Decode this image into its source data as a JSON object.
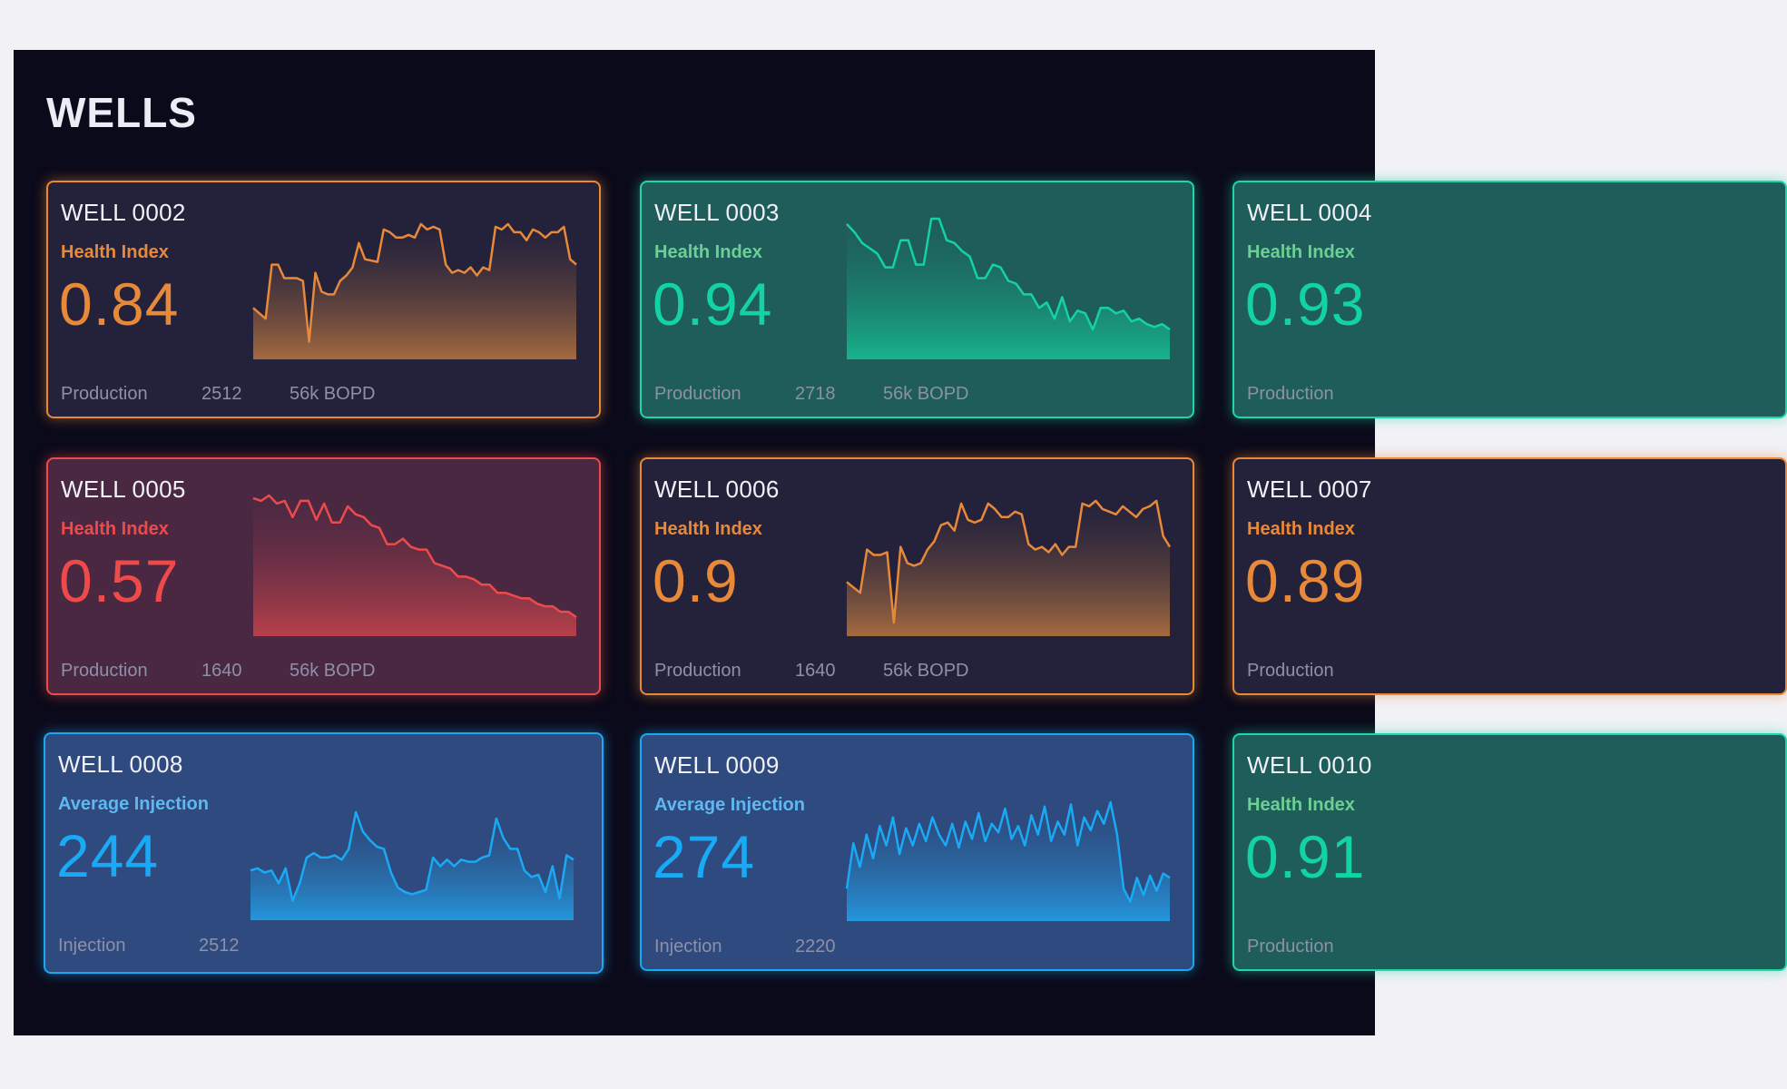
{
  "header": {
    "title": "WELLS"
  },
  "themes": {
    "orange": {
      "bg": "#24223a",
      "border": "#e8893a",
      "accent": "#e8893a",
      "metric": "#e8893a",
      "fill_bottom": "#a56a3e",
      "fill_top": "#2a2540"
    },
    "teal": {
      "bg": "#1e5d5a",
      "border": "#1fd6a8",
      "accent": "#14d3a2",
      "metric": "#6ccf94",
      "fill_bottom": "#17b38c",
      "fill_top": "#1e5d5a"
    },
    "red": {
      "bg": "#4a2842",
      "border": "#ec4b4b",
      "accent": "#ef4a4a",
      "metric": "#ef4a4a",
      "fill_bottom": "#b8404a",
      "fill_top": "#512a44"
    },
    "blue": {
      "bg": "#2e4a7e",
      "border": "#1aa8f2",
      "accent": "#1aaaf5",
      "metric": "#5fb8f0",
      "fill_bottom": "#2396dc",
      "fill_top": "#2e4a7e"
    }
  },
  "wells": [
    {
      "name": "WELL 0002",
      "theme": "orange",
      "metric": "Health Index",
      "value": "0.84",
      "footer_label": "Production",
      "footer_value": "2512",
      "footer_unit": "56k BOPD",
      "sparkline": [
        30,
        26,
        22,
        62,
        62,
        52,
        52,
        52,
        50,
        5,
        56,
        42,
        40,
        40,
        50,
        54,
        60,
        78,
        66,
        65,
        64,
        88,
        86,
        82,
        82,
        84,
        82,
        92,
        88,
        90,
        88,
        62,
        56,
        58,
        56,
        60,
        54,
        60,
        58,
        90,
        88,
        92,
        86,
        86,
        80,
        88,
        86,
        82,
        86,
        86,
        90,
        66,
        62
      ]
    },
    {
      "name": "WELL 0003",
      "theme": "teal",
      "metric": "Health Index",
      "value": "0.94",
      "footer_label": "Production",
      "footer_value": "2718",
      "footer_unit": "56k BOPD",
      "sparkline": [
        92,
        86,
        78,
        74,
        70,
        60,
        60,
        80,
        80,
        62,
        62,
        96,
        96,
        80,
        78,
        72,
        68,
        52,
        52,
        62,
        60,
        50,
        48,
        40,
        40,
        30,
        34,
        22,
        38,
        20,
        28,
        26,
        14,
        30,
        30,
        26,
        28,
        20,
        22,
        18,
        16,
        18,
        14
      ]
    },
    {
      "name": "WELL 0004",
      "theme": "teal",
      "metric": "Health Index",
      "value": "0.93",
      "footer_label": "Production",
      "footer_value": "",
      "footer_unit": "",
      "sparkline": []
    },
    {
      "name": "WELL 0005",
      "theme": "red",
      "metric": "Health Index",
      "value": "0.57",
      "footer_label": "Production",
      "footer_value": "1640",
      "footer_unit": "56k BOPD",
      "sparkline": [
        94,
        92,
        96,
        90,
        92,
        80,
        92,
        92,
        78,
        90,
        76,
        76,
        88,
        82,
        80,
        74,
        72,
        60,
        60,
        64,
        58,
        56,
        56,
        46,
        44,
        42,
        36,
        36,
        34,
        30,
        30,
        24,
        24,
        22,
        20,
        20,
        16,
        14,
        14,
        10,
        10,
        6
      ]
    },
    {
      "name": "WELL 0006",
      "theme": "orange",
      "metric": "Health Index",
      "value": "0.9",
      "footer_label": "Production",
      "footer_value": "1640",
      "footer_unit": "56k BOPD",
      "sparkline": [
        32,
        28,
        24,
        56,
        52,
        52,
        54,
        2,
        58,
        46,
        44,
        46,
        56,
        62,
        74,
        76,
        70,
        90,
        78,
        76,
        78,
        90,
        86,
        80,
        80,
        84,
        82,
        60,
        56,
        58,
        54,
        60,
        52,
        58,
        58,
        90,
        88,
        92,
        86,
        84,
        82,
        88,
        84,
        80,
        86,
        88,
        92,
        66,
        58
      ]
    },
    {
      "name": "WELL 0007",
      "theme": "orange",
      "metric": "Health Index",
      "value": "0.89",
      "footer_label": "Production",
      "footer_value": "",
      "footer_unit": "",
      "sparkline": []
    },
    {
      "name": "WELL 0008",
      "theme": "blue",
      "metric": "Average Injection",
      "value": "244",
      "footer_label": "Injection",
      "footer_value": "2512",
      "footer_unit": "",
      "sparkline": [
        36,
        38,
        34,
        36,
        24,
        38,
        8,
        24,
        48,
        52,
        48,
        48,
        50,
        46,
        56,
        90,
        72,
        64,
        58,
        56,
        34,
        20,
        16,
        14,
        16,
        18,
        48,
        40,
        46,
        40,
        46,
        44,
        44,
        48,
        50,
        84,
        66,
        56,
        56,
        36,
        30,
        32,
        16,
        40,
        10,
        50,
        46
      ]
    },
    {
      "name": "WELL 0009",
      "theme": "blue",
      "metric": "Average Injection",
      "value": "274",
      "footer_label": "Injection",
      "footer_value": "2220",
      "footer_unit": "",
      "sparkline": [
        20,
        62,
        40,
        70,
        48,
        78,
        60,
        86,
        52,
        76,
        60,
        80,
        64,
        86,
        70,
        60,
        80,
        58,
        82,
        66,
        90,
        64,
        80,
        72,
        94,
        66,
        78,
        60,
        88,
        70,
        96,
        64,
        82,
        70,
        98,
        60,
        86,
        74,
        92,
        80,
        100,
        70,
        20,
        8,
        30,
        14,
        32,
        18,
        34,
        30
      ]
    },
    {
      "name": "WELL 0010",
      "theme": "teal",
      "metric": "Health Index",
      "value": "0.91",
      "footer_label": "Production",
      "footer_value": "",
      "footer_unit": "",
      "sparkline": []
    }
  ]
}
